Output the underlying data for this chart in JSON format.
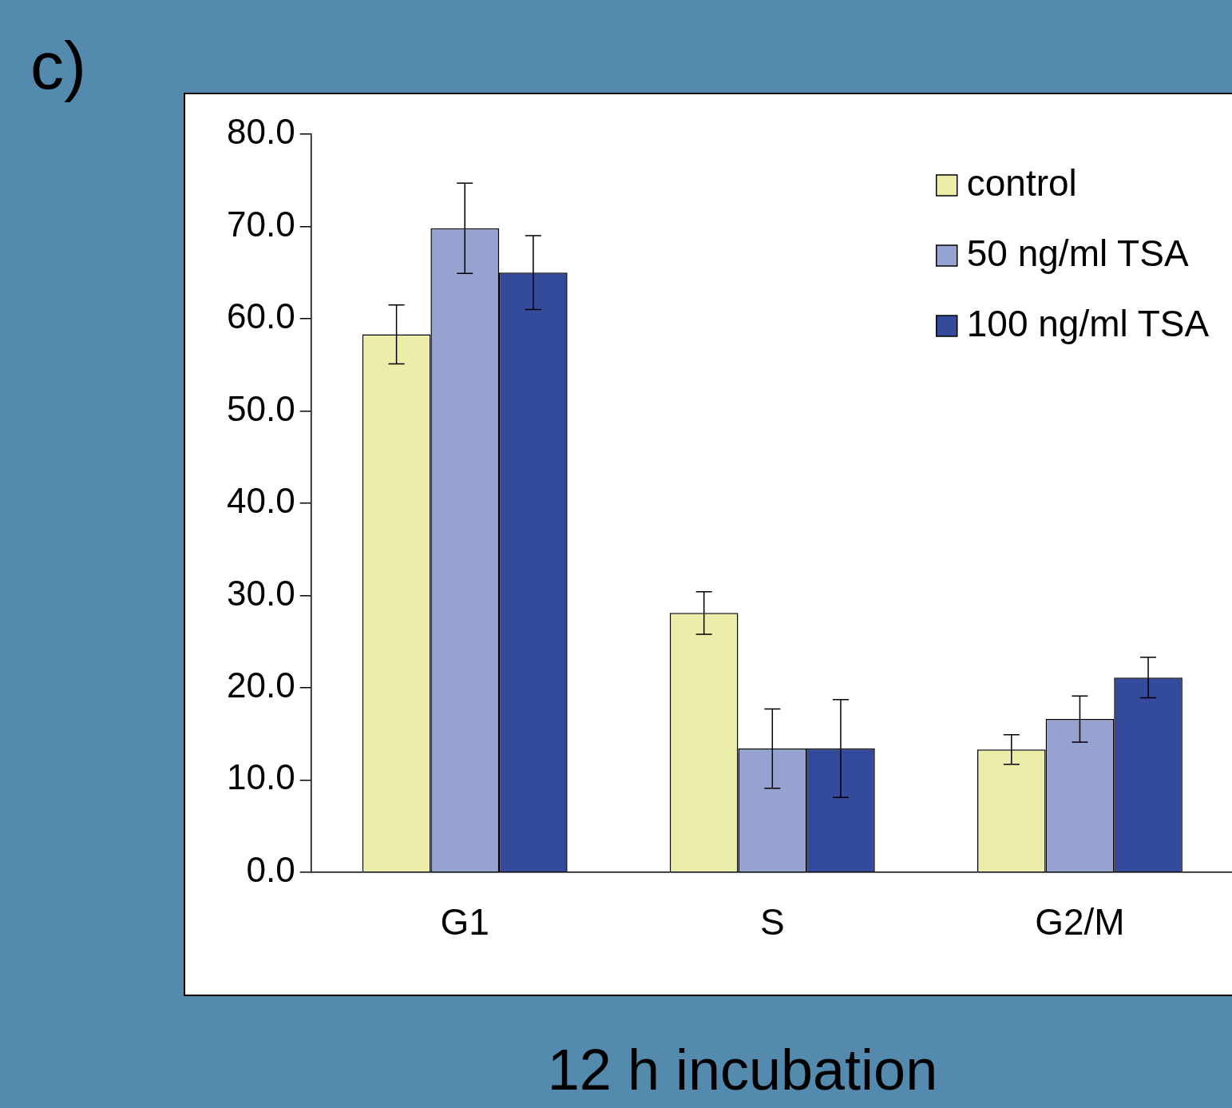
{
  "chart_data": {
    "type": "bar",
    "xlabel": "12 h incubation",
    "annotations": [
      "c)"
    ],
    "categories": [
      "G1",
      "S",
      "G2/M"
    ],
    "series": [
      {
        "name": "control",
        "color": "#eceda8",
        "values": [
          58.3,
          28.1,
          13.3
        ],
        "errors": [
          3.2,
          2.3,
          1.6
        ]
      },
      {
        "name": "50 ng/ml TSA",
        "color": "#96a3d1",
        "values": [
          69.8,
          13.4,
          16.6
        ],
        "errors": [
          4.9,
          4.3,
          2.5
        ]
      },
      {
        "name": "100 ng/ml TSA",
        "color": "#344a9b",
        "values": [
          65.0,
          13.4,
          21.1
        ],
        "errors": [
          4.0,
          5.3,
          2.2
        ]
      }
    ],
    "ylim": [
      0,
      80
    ],
    "yticks": [
      {
        "value": 0,
        "label": "0.0"
      },
      {
        "value": 10,
        "label": "10.0"
      },
      {
        "value": 20,
        "label": "20.0"
      },
      {
        "value": 30,
        "label": "30.0"
      },
      {
        "value": 40,
        "label": "40.0"
      },
      {
        "value": 50,
        "label": "50.0"
      },
      {
        "value": 60,
        "label": "60.0"
      },
      {
        "value": 70,
        "label": "70.0"
      },
      {
        "value": 80,
        "label": "80.0"
      }
    ],
    "grid": false,
    "legend": "top right"
  }
}
